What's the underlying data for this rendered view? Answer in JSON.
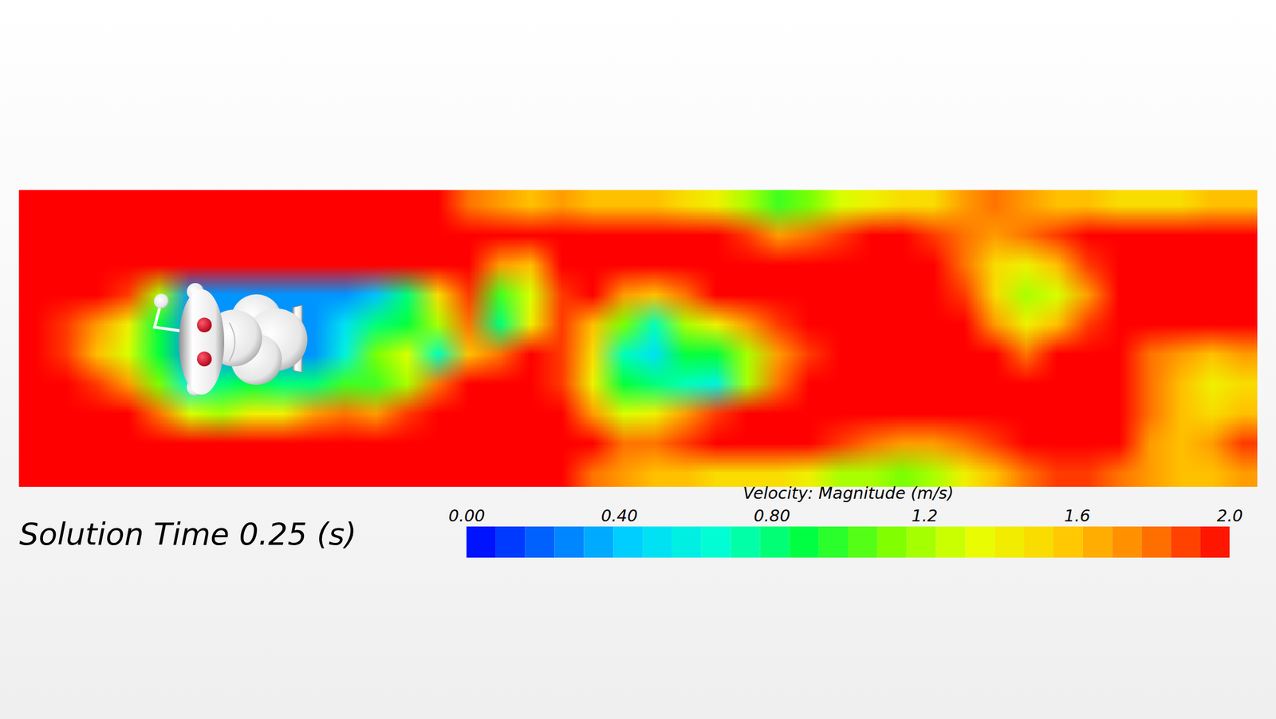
{
  "chart_data": {
    "type": "heatmap",
    "title": "Solution Time 0.25 (s)",
    "tick_labels": false,
    "colorbar": {
      "label": "Velocity: Magnitude (m/s)",
      "range": [
        0,
        2
      ],
      "ticks": [
        {
          "value": 0,
          "label": "0.00"
        },
        {
          "value": 0.4,
          "label": "0.40"
        },
        {
          "value": 0.8,
          "label": "0.80"
        },
        1.2,
        1.6,
        {
          "value": 2,
          "label": "2.0"
        }
      ]
    },
    "cells": [
      [
        2,
        2,
        2,
        2,
        2,
        2,
        2,
        2,
        2,
        2,
        2,
        2,
        2,
        2,
        1.8,
        1.7,
        1.6,
        1.7,
        1.6,
        1.6,
        1.6,
        1.5,
        1.4,
        1.2,
        1.0,
        1.1,
        1.3,
        1.4,
        1.5,
        1.5,
        1.7,
        1.8,
        1.7,
        1.6,
        1.6,
        1.5,
        1.5,
        1.5,
        1.6,
        1.6
      ],
      [
        2,
        2,
        2,
        2,
        2,
        2,
        2,
        2,
        2,
        2,
        2,
        2,
        2,
        2,
        2,
        2,
        2,
        2,
        2,
        2,
        2,
        2,
        2,
        1.9,
        1.7,
        1.8,
        1.9,
        2,
        2,
        1.9,
        1.8,
        1.7,
        1.8,
        1.9,
        2,
        2,
        2,
        2,
        2,
        2
      ],
      [
        2,
        2,
        2,
        2,
        2,
        2,
        2,
        2,
        2,
        2,
        2,
        2,
        2,
        2,
        2,
        1.7,
        1.6,
        2,
        2,
        2,
        2,
        2,
        2,
        2,
        2,
        2,
        2,
        2,
        2,
        2,
        1.8,
        1.5,
        1.4,
        1.6,
        1.9,
        2,
        2,
        2,
        2,
        2
      ],
      [
        2,
        2,
        2,
        1.9,
        1.2,
        0.3,
        0.3,
        0.3,
        0.3,
        0.3,
        0.3,
        0.4,
        0.8,
        1.5,
        1.9,
        1.0,
        1.3,
        1.9,
        2,
        1.7,
        1.6,
        1.8,
        2,
        2,
        2,
        2,
        2,
        2,
        2,
        2,
        1.9,
        1.5,
        1.2,
        1.3,
        1.7,
        2,
        2,
        2,
        2,
        2
      ],
      [
        2,
        1.9,
        1.7,
        1.4,
        0.9,
        0.3,
        0.3,
        0.3,
        0.3,
        0.3,
        0.5,
        0.8,
        0.9,
        1.2,
        1.8,
        0.8,
        1.4,
        1.9,
        1.6,
        1.1,
        0.7,
        1.2,
        1.4,
        1.7,
        1.9,
        2,
        2,
        2,
        2,
        2,
        2,
        1.7,
        1.4,
        1.6,
        1.9,
        2,
        2,
        2,
        2,
        2
      ],
      [
        2,
        1.9,
        1.6,
        1.3,
        0.9,
        0.3,
        0.3,
        0.3,
        0.3,
        0.3,
        0.6,
        1.1,
        1.3,
        0.7,
        1.6,
        1.8,
        2,
        1.9,
        1.5,
        0.7,
        0.5,
        0.9,
        0.9,
        1.2,
        1.7,
        1.9,
        2,
        2,
        2,
        2,
        2,
        2,
        1.8,
        2,
        2,
        2,
        1.8,
        1.7,
        1.6,
        1.7
      ],
      [
        2,
        2,
        1.9,
        1.7,
        1.1,
        0.6,
        0.8,
        0.9,
        0.8,
        0.8,
        1.0,
        1.0,
        1.2,
        1.8,
        2,
        2,
        2,
        1.9,
        1.4,
        0.9,
        0.8,
        0.7,
        0.6,
        1.2,
        1.8,
        2,
        2,
        2,
        2,
        2,
        2,
        2,
        2,
        2,
        2,
        2,
        1.8,
        1.6,
        1.4,
        1.5
      ],
      [
        2,
        2,
        2,
        2,
        1.8,
        1.3,
        1.2,
        1.4,
        1.4,
        1.7,
        1.8,
        1.7,
        1.9,
        2,
        2,
        2,
        2,
        2,
        1.7,
        1.3,
        1.4,
        1.7,
        1.9,
        2,
        2,
        2,
        2,
        2,
        2,
        2,
        2,
        2,
        2,
        2,
        2,
        2,
        1.8,
        1.6,
        1.5,
        1.6
      ],
      [
        2,
        2,
        2,
        2,
        2,
        2,
        2,
        2,
        2,
        2,
        2,
        2,
        2,
        2,
        2,
        2,
        2,
        2,
        2,
        1.8,
        1.8,
        1.9,
        2,
        2,
        2,
        2,
        1.9,
        1.8,
        1.7,
        1.7,
        1.8,
        1.9,
        2,
        2,
        2,
        2,
        1.7,
        1.6,
        1.7,
        1.9
      ],
      [
        2,
        2,
        2,
        2,
        2,
        2,
        2,
        2,
        2,
        2,
        2,
        2,
        2,
        2,
        2,
        2,
        2,
        2,
        1.8,
        1.7,
        1.6,
        1.6,
        1.5,
        1.5,
        1.5,
        1.4,
        1.2,
        1.2,
        1.1,
        1.2,
        1.4,
        1.6,
        1.8,
        1.9,
        1.9,
        1.8,
        1.7,
        1.6,
        1.6,
        1.7
      ]
    ]
  }
}
